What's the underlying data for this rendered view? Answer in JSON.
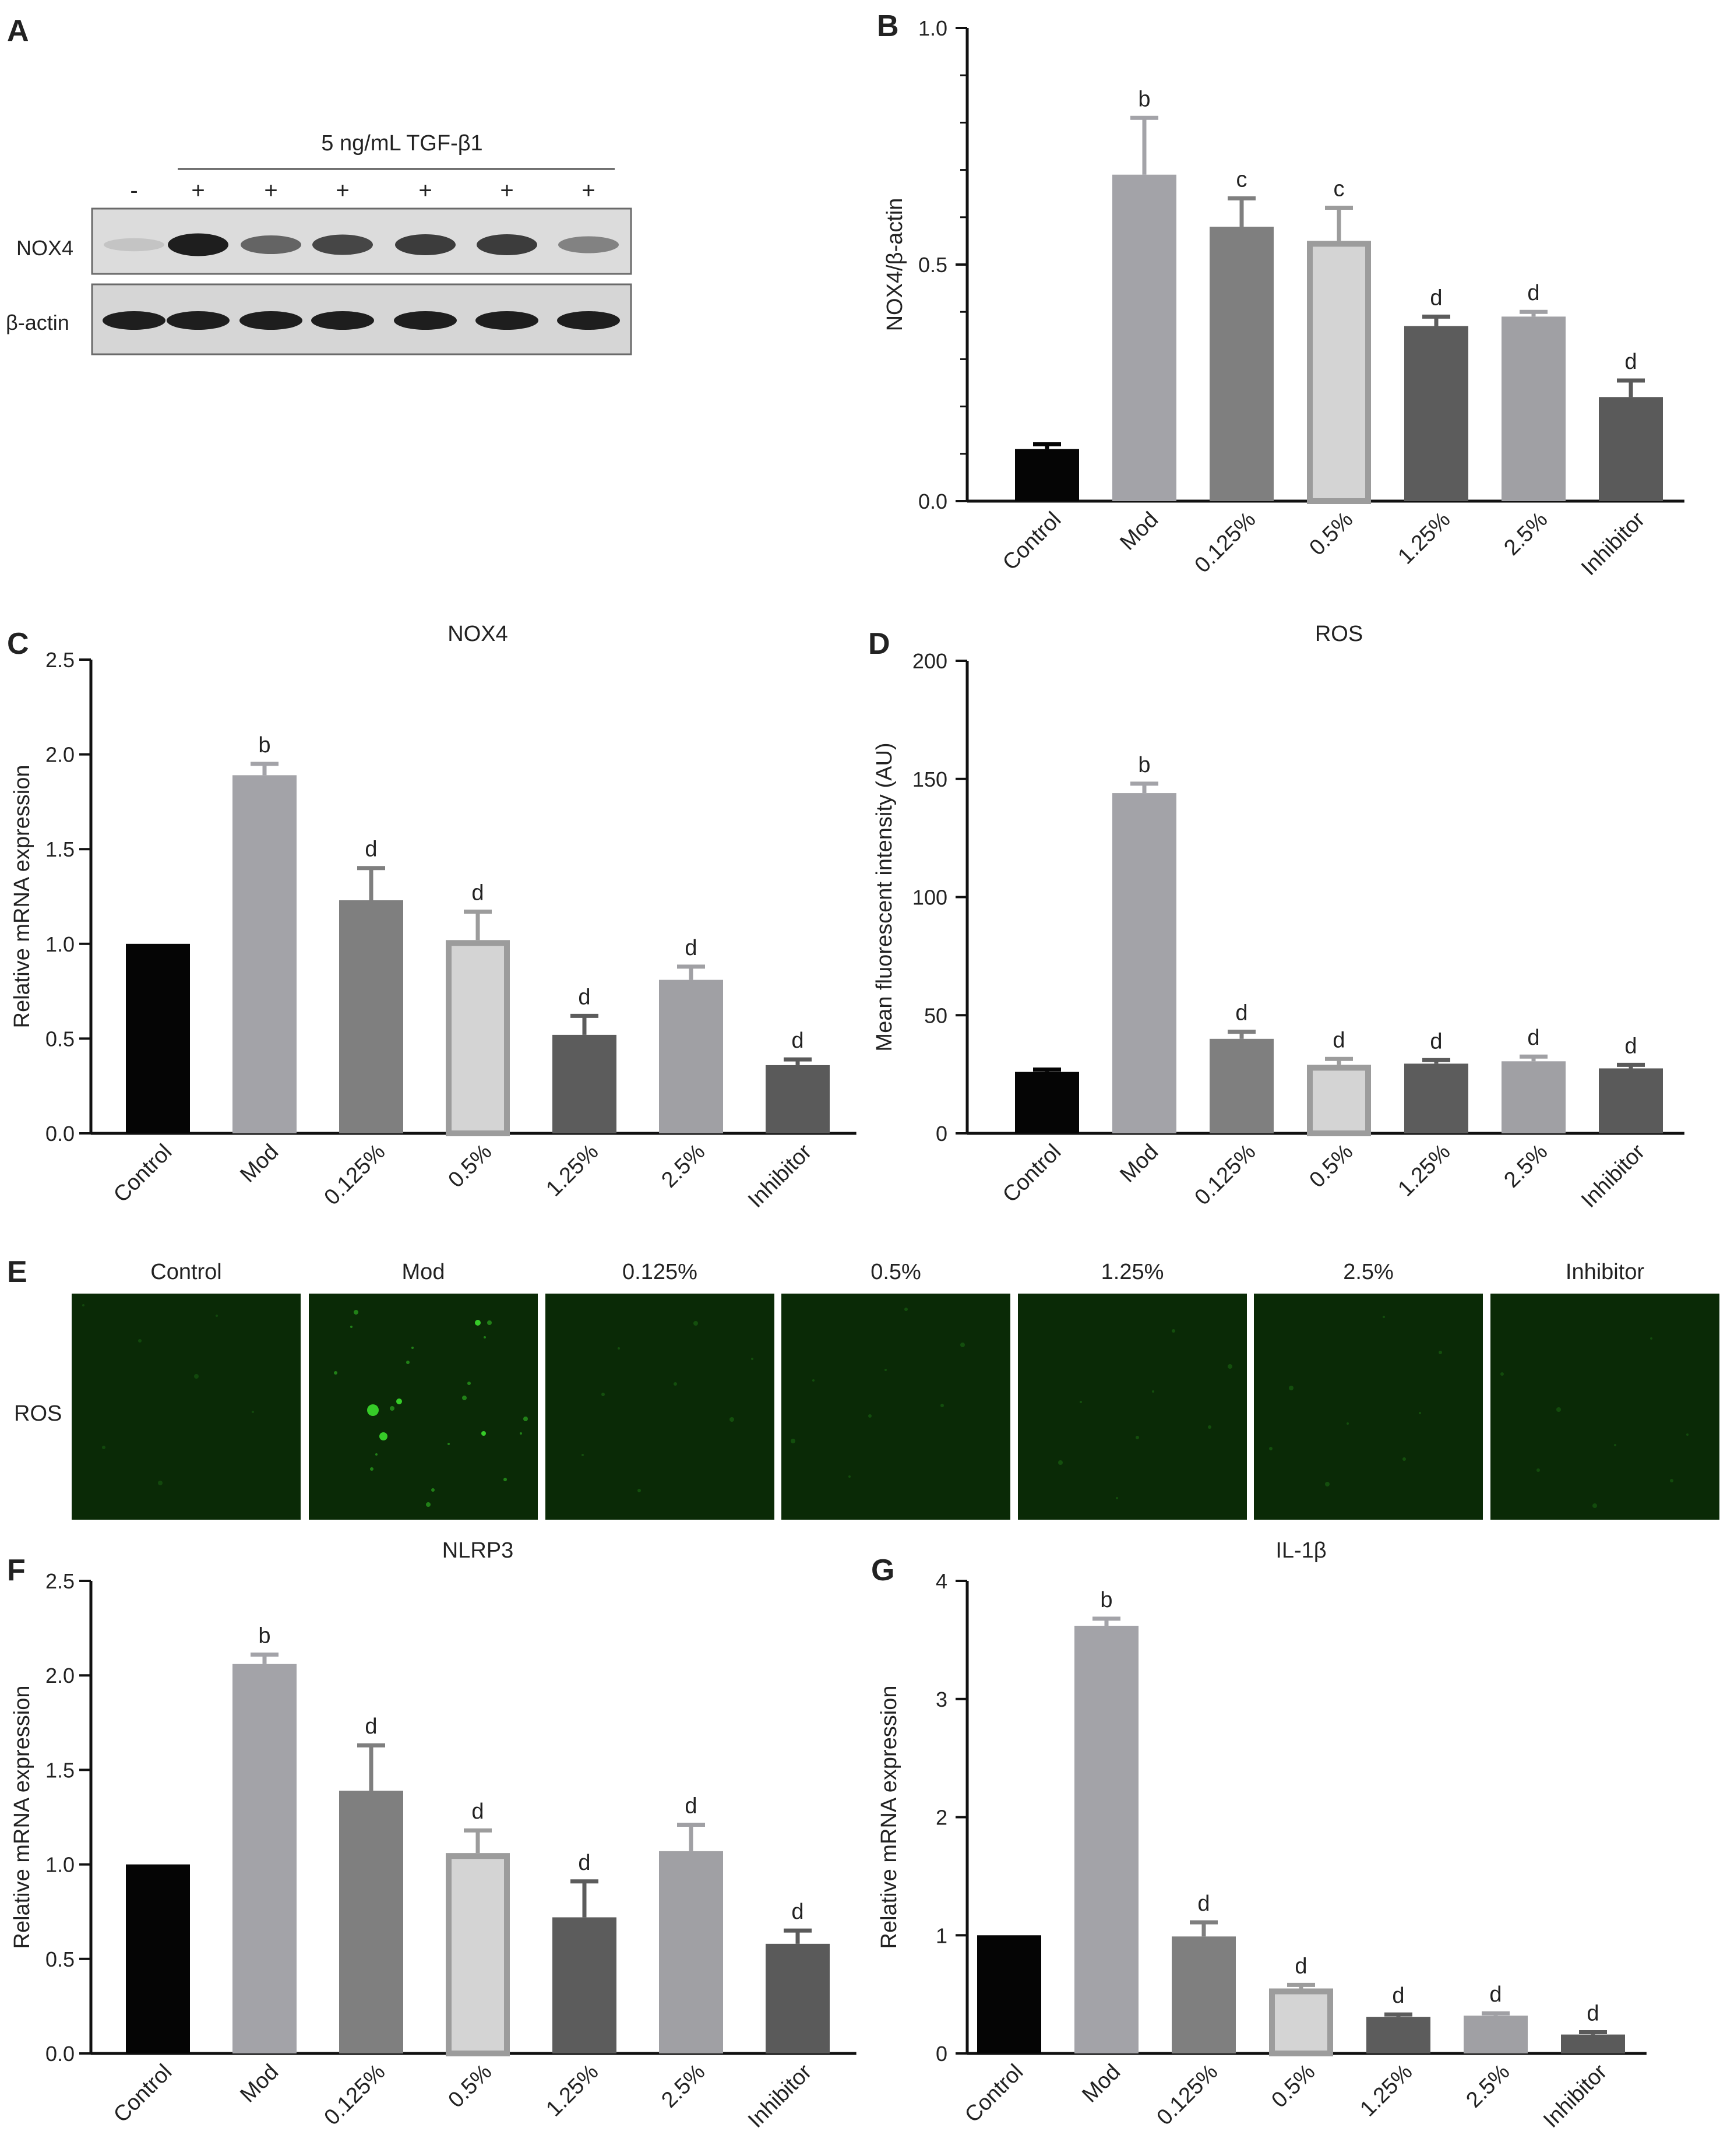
{
  "panel_letters": {
    "a": "A",
    "b": "B",
    "c": "C",
    "d": "D",
    "e": "E",
    "f": "F",
    "g": "G"
  },
  "blot": {
    "treatment_label": "5 ng/mL TGF-β1",
    "lane_signs": [
      "-",
      "+",
      "+",
      "+",
      "+",
      "+",
      "+"
    ],
    "row_labels": [
      "NOX4",
      "β-actin"
    ],
    "nox4_band_intensity": [
      0.12,
      0.95,
      0.6,
      0.75,
      0.8,
      0.8,
      0.45
    ]
  },
  "micrographs": {
    "row_label": "ROS",
    "columns": [
      "Control",
      "Mod",
      "0.125%",
      "0.5%",
      "1.25%",
      "2.5%",
      "Inhibitor"
    ],
    "green_signal": [
      0.05,
      0.6,
      0.12,
      0.1,
      0.12,
      0.12,
      0.08
    ]
  },
  "colors": {
    "Control": "#050505",
    "Mod": "#a3a3a8",
    "0.125%": "#7f7f7f",
    "0.5%": "#d4d4d4",
    "0.5%_edge": "#9c9c9c",
    "1.25%": "#5c5c5c",
    "2.5%": "#a0a0a4",
    "Inhibitor": "#5a5a5a",
    "micrograph_bg": "#0a2a06",
    "micrograph_signal": "#39d42a"
  },
  "chart_data": [
    {
      "id": "B",
      "type": "bar",
      "title": "",
      "categories": [
        "Control",
        "Mod",
        "0.125%",
        "0.5%",
        "1.25%",
        "2.5%",
        "Inhibitor"
      ],
      "values": [
        0.11,
        0.69,
        0.58,
        0.55,
        0.37,
        0.39,
        0.22
      ],
      "errors": [
        0.01,
        0.12,
        0.06,
        0.07,
        0.02,
        0.01,
        0.035
      ],
      "annotations": [
        "",
        "b",
        "c",
        "c",
        "d",
        "d",
        "d"
      ],
      "ylabel": "NOX4/β-actin",
      "xlabel": "",
      "ylim": [
        0,
        1.0
      ],
      "yticks": [
        0.0,
        0.5,
        1.0
      ],
      "ytick_labels": [
        "0.0",
        "0.5",
        "1.0"
      ],
      "minor_per_major": 5
    },
    {
      "id": "C",
      "type": "bar",
      "title": "NOX4",
      "categories": [
        "Control",
        "Mod",
        "0.125%",
        "0.5%",
        "1.25%",
        "2.5%",
        "Inhibitor"
      ],
      "values": [
        1.0,
        1.89,
        1.23,
        1.02,
        0.52,
        0.81,
        0.36
      ],
      "errors": [
        0,
        0.06,
        0.17,
        0.15,
        0.1,
        0.07,
        0.03
      ],
      "annotations": [
        "",
        "b",
        "d",
        "d",
        "d",
        "d",
        "d"
      ],
      "ylabel": "Relative mRNA expression",
      "xlabel": "",
      "ylim": [
        0,
        2.5
      ],
      "yticks": [
        0.0,
        0.5,
        1.0,
        1.5,
        2.0,
        2.5
      ],
      "ytick_labels": [
        "0.0",
        "0.5",
        "1.0",
        "1.5",
        "2.0",
        "2.5"
      ],
      "minor_per_major": 1
    },
    {
      "id": "D",
      "type": "bar",
      "title": "ROS",
      "categories": [
        "Control",
        "Mod",
        "0.125%",
        "0.5%",
        "1.25%",
        "2.5%",
        "Inhibitor"
      ],
      "values": [
        26,
        144,
        40,
        29,
        29.5,
        30.5,
        27.5
      ],
      "errors": [
        1,
        4,
        3,
        2.5,
        1.5,
        2,
        1.5
      ],
      "annotations": [
        "",
        "b",
        "d",
        "d",
        "d",
        "d",
        "d"
      ],
      "ylabel": "Mean fluorescent intensity (AU)",
      "xlabel": "",
      "ylim": [
        0,
        200
      ],
      "yticks": [
        0,
        50,
        100,
        150,
        200
      ],
      "ytick_labels": [
        "0",
        "50",
        "100",
        "150",
        "200"
      ],
      "minor_per_major": 1
    },
    {
      "id": "F",
      "type": "bar",
      "title": "NLRP3",
      "categories": [
        "Control",
        "Mod",
        "0.125%",
        "0.5%",
        "1.25%",
        "2.5%",
        "Inhibitor"
      ],
      "values": [
        1.0,
        2.06,
        1.39,
        1.06,
        0.72,
        1.07,
        0.58
      ],
      "errors": [
        0,
        0.05,
        0.24,
        0.12,
        0.19,
        0.14,
        0.07
      ],
      "annotations": [
        "",
        "b",
        "d",
        "d",
        "d",
        "d",
        "d"
      ],
      "ylabel": "Relative mRNA expression",
      "xlabel": "",
      "ylim": [
        0,
        2.5
      ],
      "yticks": [
        0.0,
        0.5,
        1.0,
        1.5,
        2.0,
        2.5
      ],
      "ytick_labels": [
        "0.0",
        "0.5",
        "1.0",
        "1.5",
        "2.0",
        "2.5"
      ],
      "minor_per_major": 1
    },
    {
      "id": "G",
      "type": "bar",
      "title": "IL-1β",
      "categories": [
        "Control",
        "Mod",
        "0.125%",
        "0.5%",
        "1.25%",
        "2.5%",
        "Inhibitor"
      ],
      "values": [
        1.0,
        3.62,
        0.99,
        0.55,
        0.31,
        0.32,
        0.16
      ],
      "errors": [
        0,
        0.06,
        0.12,
        0.03,
        0.02,
        0.02,
        0.02
      ],
      "annotations": [
        "",
        "b",
        "d",
        "d",
        "d",
        "d",
        "d"
      ],
      "ylabel": "Relative mRNA expression",
      "xlabel": "",
      "ylim": [
        0,
        4
      ],
      "yticks": [
        0,
        1,
        2,
        3,
        4
      ],
      "ytick_labels": [
        "0",
        "1",
        "2",
        "3",
        "4"
      ],
      "minor_per_major": 1
    }
  ]
}
